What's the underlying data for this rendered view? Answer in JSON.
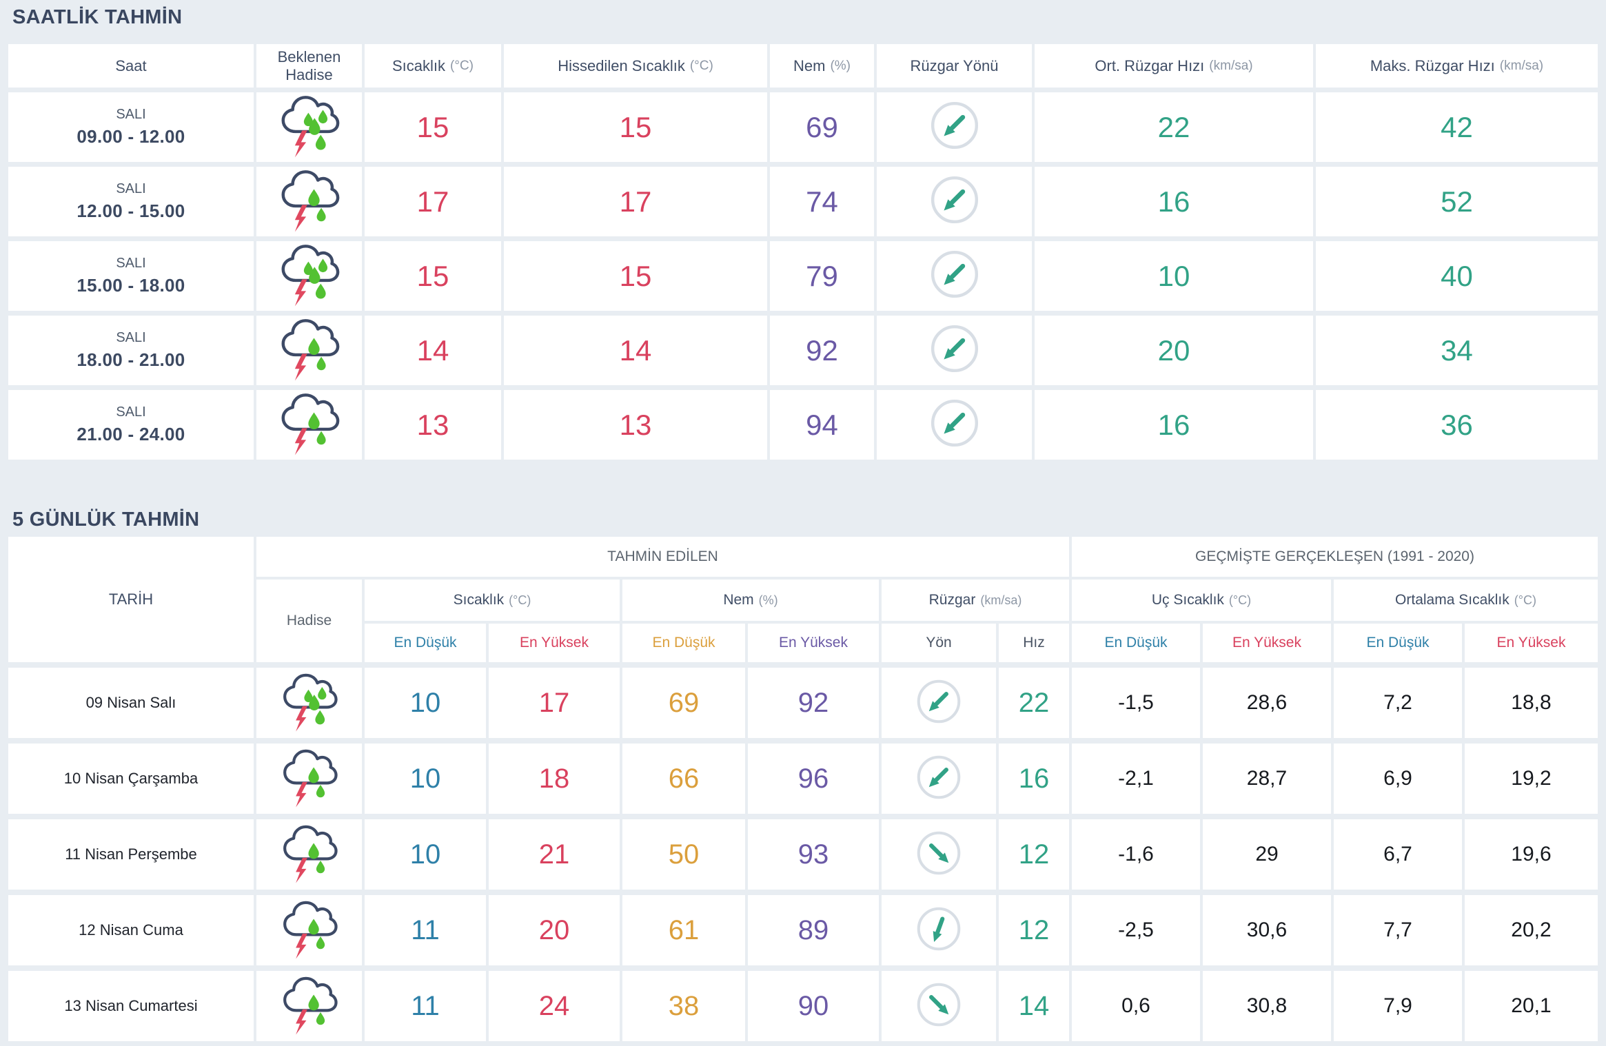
{
  "colors": {
    "background": "#e8edf2",
    "cell": "#ffffff",
    "title": "#3a4760",
    "header_text": "#404e66",
    "unit_text": "#8d97a5",
    "group_header_text": "#5b646e",
    "date_text": "#20242c",
    "historical_text": "#16191e",
    "temp_max_red": "#d9415e",
    "temp_min_blue": "#2e80a8",
    "humidity_min_orange": "#db9f3c",
    "humidity_purple": "#6a59a5",
    "wind_teal": "#31a286",
    "wind_circle": "#d8dee5",
    "cloud_outline": "#3d4a66",
    "cloud_shadow": "#c7ced6",
    "lightning_red": "#e0485f",
    "raindrop_green": "#53c132"
  },
  "hourly": {
    "title": "SAATLİK TAHMİN",
    "columns": [
      {
        "label": "Saat",
        "unit": ""
      },
      {
        "label": "Beklenen Hadise",
        "unit": ""
      },
      {
        "label": "Sıcaklık",
        "unit": "(°C)"
      },
      {
        "label": "Hissedilen Sıcaklık",
        "unit": "(°C)"
      },
      {
        "label": "Nem",
        "unit": "(%)"
      },
      {
        "label": "Rüzgar Yönü",
        "unit": ""
      },
      {
        "label": "Ort. Rüzgar Hızı",
        "unit": "(km/sa)"
      },
      {
        "label": "Maks. Rüzgar Hızı",
        "unit": "(km/sa)"
      }
    ],
    "rows": [
      {
        "day": "SALI",
        "time": "09.00 - 12.00",
        "icon": "thunderstorm-heavy",
        "temp": "15",
        "feels_like": "15",
        "humidity": "69",
        "wind_dir": "SW",
        "wind_rot": 0,
        "wind_avg": "22",
        "wind_max": "42"
      },
      {
        "day": "SALI",
        "time": "12.00 - 15.00",
        "icon": "thunderstorm-light",
        "temp": "17",
        "feels_like": "17",
        "humidity": "74",
        "wind_dir": "SW",
        "wind_rot": 0,
        "wind_avg": "16",
        "wind_max": "52"
      },
      {
        "day": "SALI",
        "time": "15.00 - 18.00",
        "icon": "thunderstorm-heavy",
        "temp": "15",
        "feels_like": "15",
        "humidity": "79",
        "wind_dir": "SW",
        "wind_rot": 0,
        "wind_avg": "10",
        "wind_max": "40"
      },
      {
        "day": "SALI",
        "time": "18.00 - 21.00",
        "icon": "thunderstorm-light",
        "temp": "14",
        "feels_like": "14",
        "humidity": "92",
        "wind_dir": "SW",
        "wind_rot": 0,
        "wind_avg": "20",
        "wind_max": "34"
      },
      {
        "day": "SALI",
        "time": "21.00 - 24.00",
        "icon": "thunderstorm-light",
        "temp": "13",
        "feels_like": "13",
        "humidity": "94",
        "wind_dir": "SW",
        "wind_rot": 0,
        "wind_avg": "16",
        "wind_max": "36"
      }
    ]
  },
  "daily": {
    "title": "5 GÜNLÜK TAHMİN",
    "date_header": "TARİH",
    "event_header": "Hadise",
    "group_predicted": "TAHMİN EDİLEN",
    "group_historical": "GEÇMİŞTE GERÇEKLEŞEN (1991 - 2020)",
    "groups": {
      "temp": {
        "label": "Sıcaklık",
        "unit": "(°C)"
      },
      "humidity": {
        "label": "Nem",
        "unit": "(%)"
      },
      "wind": {
        "label": "Rüzgar",
        "unit": "(km/sa)"
      },
      "extreme_temp": {
        "label": "Uç Sıcaklık",
        "unit": "(°C)"
      },
      "avg_temp": {
        "label": "Ortalama Sıcaklık",
        "unit": "(°C)"
      }
    },
    "labels": {
      "min": "En Düşük",
      "max": "En Yüksek",
      "dir": "Yön",
      "speed": "Hız"
    },
    "rows": [
      {
        "date": "09 Nisan Salı",
        "icon": "thunderstorm-heavy",
        "temp_min": "10",
        "temp_max": "17",
        "hum_min": "69",
        "hum_max": "92",
        "wind_dir": "SW",
        "wind_rot": 0,
        "wind_speed": "22",
        "ext_min": "-1,5",
        "ext_max": "28,6",
        "avg_min": "7,2",
        "avg_max": "18,8"
      },
      {
        "date": "10 Nisan Çarşamba",
        "icon": "thunderstorm-light",
        "temp_min": "10",
        "temp_max": "18",
        "hum_min": "66",
        "hum_max": "96",
        "wind_dir": "SW",
        "wind_rot": 0,
        "wind_speed": "16",
        "ext_min": "-2,1",
        "ext_max": "28,7",
        "avg_min": "6,9",
        "avg_max": "19,2"
      },
      {
        "date": "11 Nisan Perşembe",
        "icon": "thunderstorm-light",
        "temp_min": "10",
        "temp_max": "21",
        "hum_min": "50",
        "hum_max": "93",
        "wind_dir": "SE",
        "wind_rot": -90,
        "wind_speed": "12",
        "ext_min": "-1,6",
        "ext_max": "29",
        "avg_min": "6,7",
        "avg_max": "19,6"
      },
      {
        "date": "12 Nisan Cuma",
        "icon": "thunderstorm-light",
        "temp_min": "11",
        "temp_max": "20",
        "hum_min": "61",
        "hum_max": "89",
        "wind_dir": "SSW",
        "wind_rot": -25,
        "wind_speed": "12",
        "ext_min": "-2,5",
        "ext_max": "30,6",
        "avg_min": "7,7",
        "avg_max": "20,2"
      },
      {
        "date": "13 Nisan Cumartesi",
        "icon": "thunderstorm-light",
        "temp_min": "11",
        "temp_max": "24",
        "hum_min": "38",
        "hum_max": "90",
        "wind_dir": "SE",
        "wind_rot": -90,
        "wind_speed": "14",
        "ext_min": "0,6",
        "ext_max": "30,8",
        "avg_min": "7,9",
        "avg_max": "20,1"
      }
    ]
  }
}
